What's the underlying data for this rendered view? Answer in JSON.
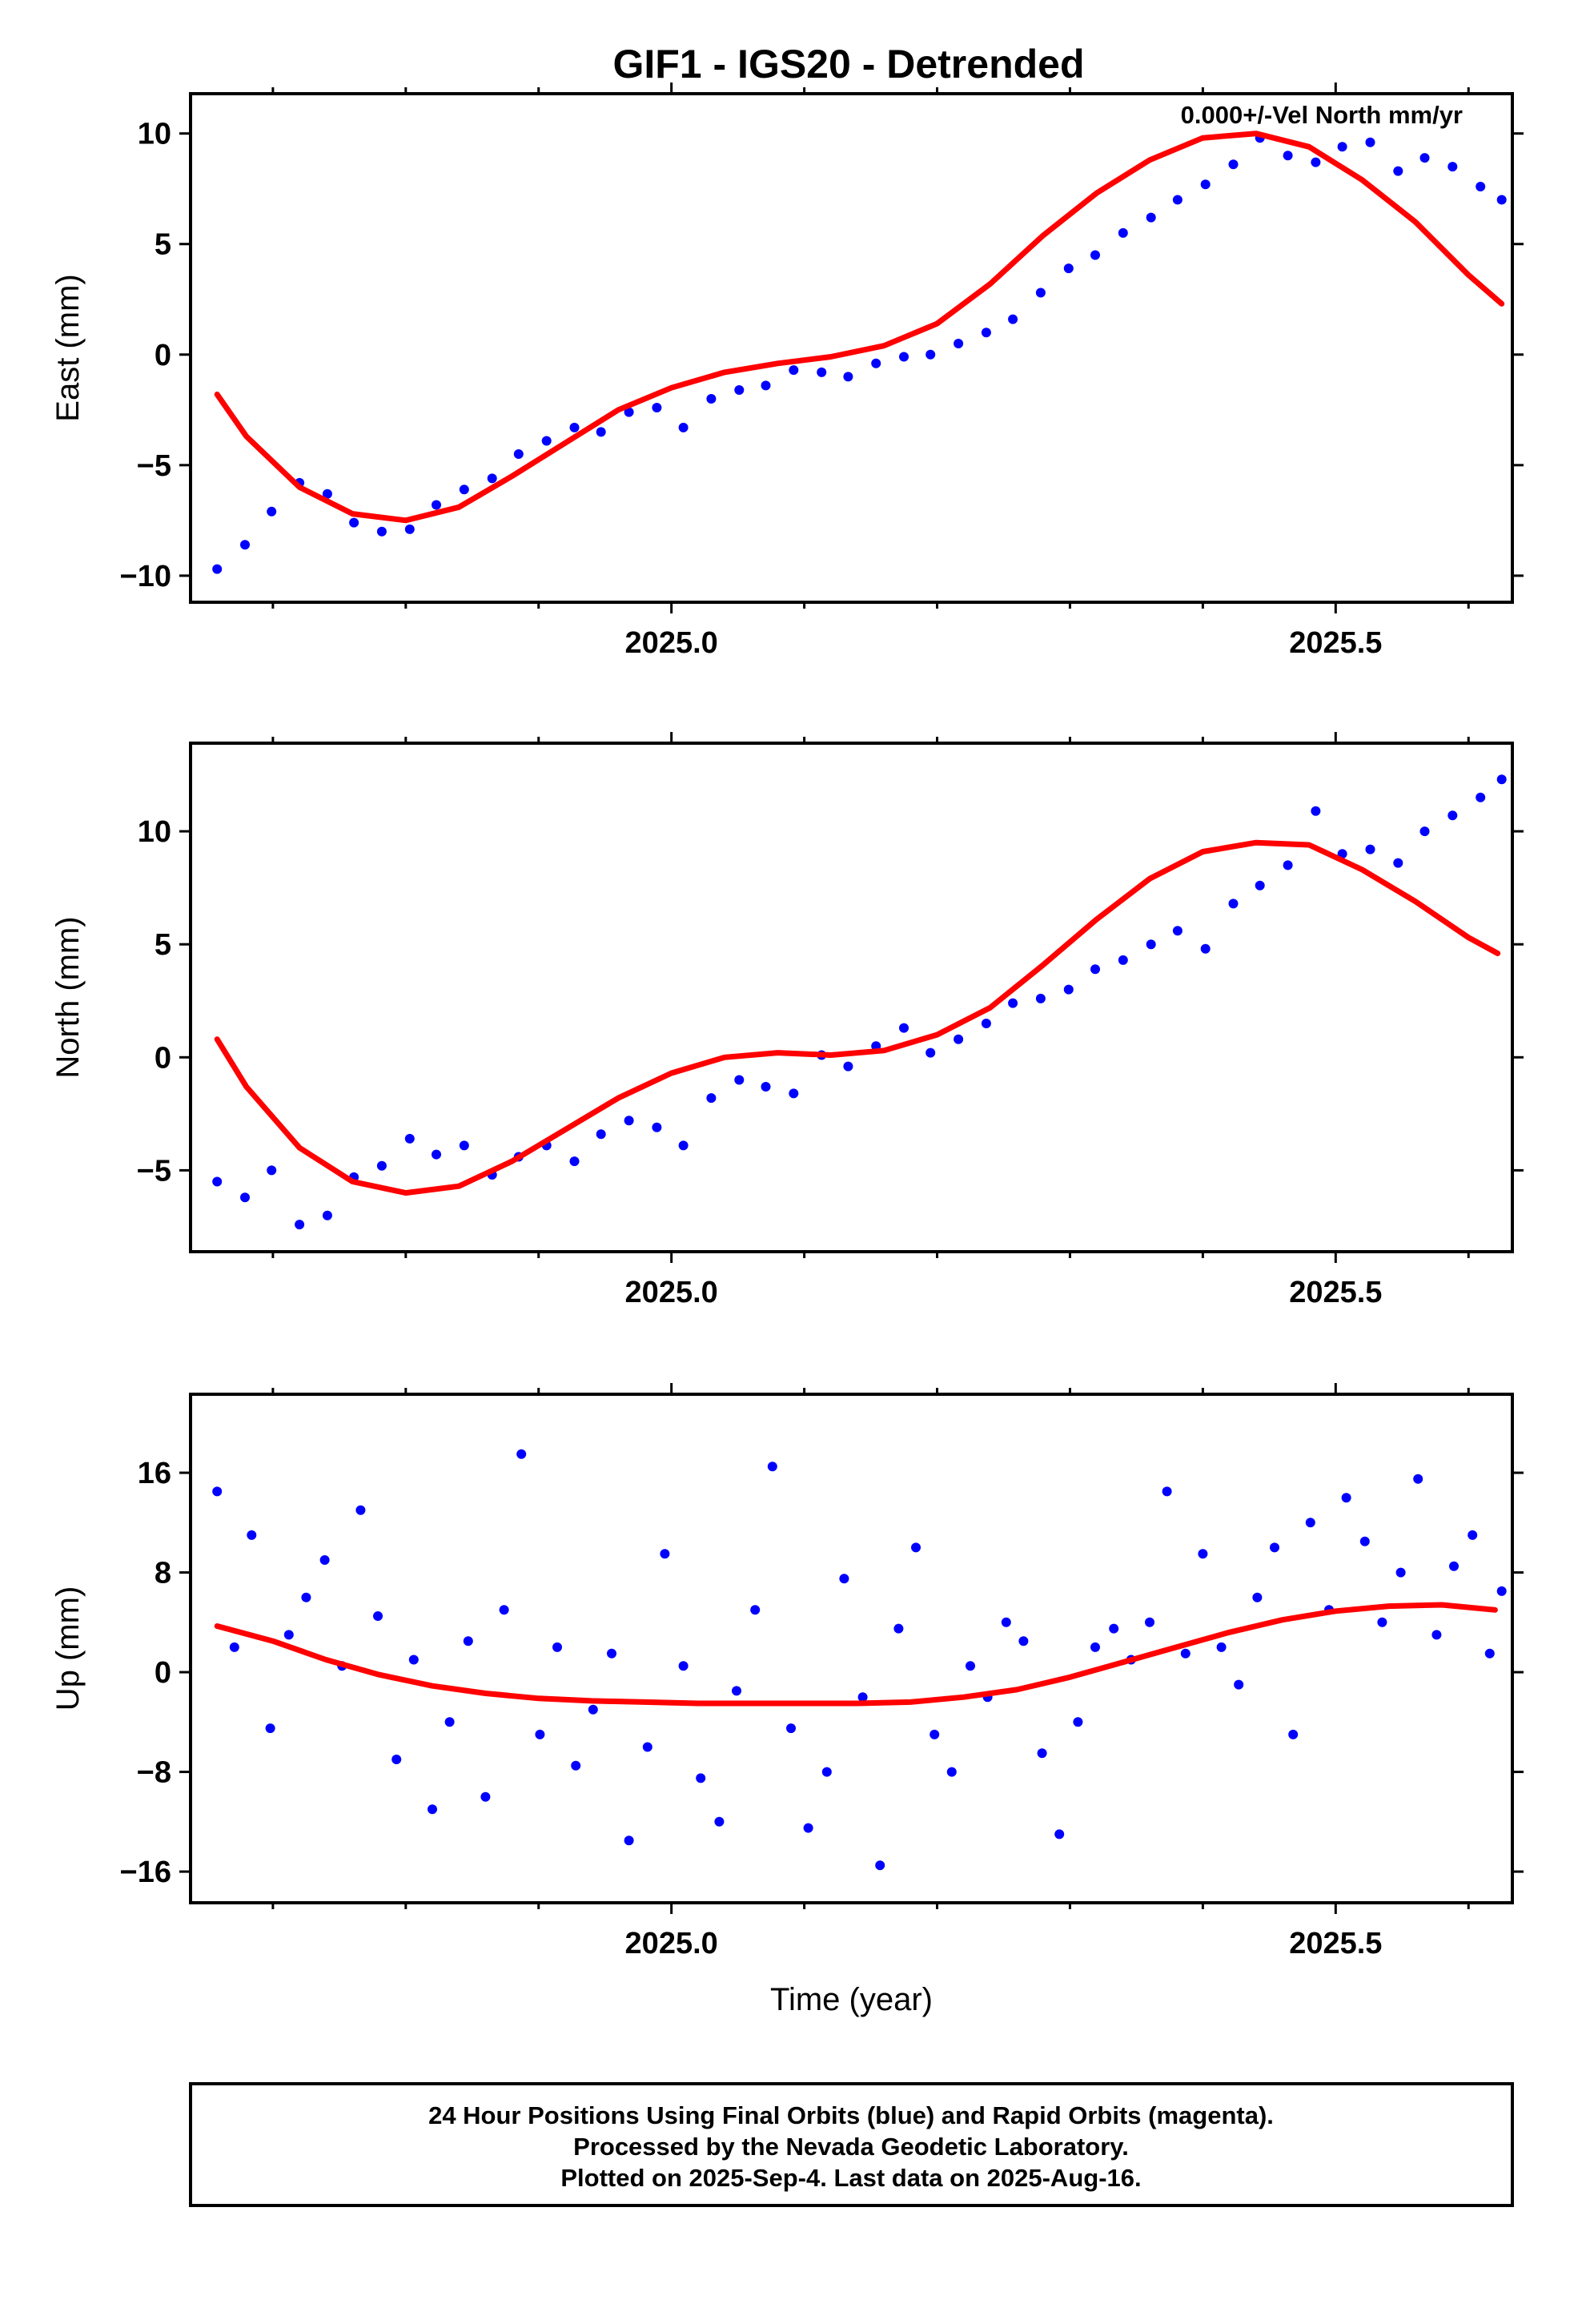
{
  "figure_title": "GIF1 - IGS20 - Detrended",
  "colors": {
    "final_orbits": "#0000ff",
    "fit": "#ff0000",
    "frame": "#000000"
  },
  "footer": {
    "lines": [
      "24 Hour Positions Using Final Orbits (blue) and Rapid Orbits (magenta).",
      "Processed by the Nevada Geodetic Laboratory.",
      "Plotted on 2025-Sep-4. Last data on 2025-Aug-16."
    ]
  },
  "chart_data": [
    {
      "type": "scatter",
      "id": "east",
      "title": "",
      "annotation": "0.000+/-Vel North mm/yr",
      "xlabel": "",
      "ylabel": "East (mm)",
      "xlim": [
        2024.638,
        2025.633
      ],
      "ylim": [
        -11.2,
        11.8
      ],
      "xticks": [
        2025.0,
        2025.5
      ],
      "xticks_labels": [
        "2025.0",
        "2025.5"
      ],
      "xticks_minor": [
        2024.7,
        2024.8,
        2024.9,
        2025.1,
        2025.2,
        2025.3,
        2025.4,
        2025.6
      ],
      "yticks": [
        -10,
        -5,
        0,
        5,
        10
      ],
      "yticks_labels": [
        "−10",
        "−5",
        "0",
        "5",
        "10"
      ],
      "grid": false,
      "series": [
        {
          "style": "points",
          "color": "#0000ff",
          "x": [
            2024.658,
            2024.679,
            2024.699,
            2024.72,
            2024.741,
            2024.761,
            2024.782,
            2024.803,
            2024.823,
            2024.844,
            2024.865,
            2024.885,
            2024.906,
            2024.927,
            2024.947,
            2024.968,
            2024.989,
            2025.009,
            2025.03,
            2025.051,
            2025.071,
            2025.092,
            2025.113,
            2025.133,
            2025.154,
            2025.175,
            2025.195,
            2025.216,
            2025.237,
            2025.257,
            2025.278,
            2025.299,
            2025.319,
            2025.34,
            2025.361,
            2025.381,
            2025.402,
            2025.423,
            2025.443,
            2025.464,
            2025.485,
            2025.505,
            2025.526,
            2025.547,
            2025.567,
            2025.588,
            2025.609,
            2025.625
          ],
          "y": [
            -9.7,
            -8.6,
            -7.1,
            -5.8,
            -6.3,
            -7.6,
            -8.0,
            -7.9,
            -6.8,
            -6.1,
            -5.6,
            -4.5,
            -3.9,
            -3.3,
            -3.5,
            -2.6,
            -2.4,
            -3.3,
            -2.0,
            -1.6,
            -1.4,
            -0.7,
            -0.8,
            -1.0,
            -0.4,
            -0.1,
            0.0,
            0.5,
            1.0,
            1.6,
            2.8,
            3.9,
            4.5,
            5.5,
            6.2,
            7.0,
            7.7,
            8.6,
            9.8,
            9.0,
            8.7,
            9.4,
            9.6,
            8.3,
            8.9,
            8.5,
            7.6,
            7.0
          ]
        },
        {
          "style": "line",
          "color": "#ff0000",
          "x": [
            2024.658,
            2024.68,
            2024.72,
            2024.76,
            2024.8,
            2024.84,
            2024.88,
            2024.92,
            2024.96,
            2025.0,
            2025.04,
            2025.08,
            2025.12,
            2025.16,
            2025.2,
            2025.24,
            2025.28,
            2025.32,
            2025.36,
            2025.4,
            2025.44,
            2025.48,
            2025.52,
            2025.56,
            2025.6,
            2025.625
          ],
          "y": [
            -1.8,
            -3.7,
            -6.0,
            -7.2,
            -7.5,
            -6.9,
            -5.5,
            -4.0,
            -2.5,
            -1.5,
            -0.8,
            -0.4,
            -0.1,
            0.4,
            1.4,
            3.2,
            5.4,
            7.3,
            8.8,
            9.8,
            10.0,
            9.4,
            7.9,
            6.0,
            3.6,
            2.3
          ]
        }
      ]
    },
    {
      "type": "scatter",
      "id": "north",
      "title": "",
      "xlabel": "",
      "ylabel": "North (mm)",
      "xlim": [
        2024.638,
        2025.633
      ],
      "ylim": [
        -8.6,
        13.9
      ],
      "xticks": [
        2025.0,
        2025.5
      ],
      "xticks_labels": [
        "2025.0",
        "2025.5"
      ],
      "xticks_minor": [
        2024.7,
        2024.8,
        2024.9,
        2025.1,
        2025.2,
        2025.3,
        2025.4,
        2025.6
      ],
      "yticks": [
        -5,
        0,
        5,
        10
      ],
      "yticks_labels": [
        "−5",
        "0",
        "5",
        "10"
      ],
      "grid": false,
      "series": [
        {
          "style": "points",
          "color": "#0000ff",
          "x": [
            2024.658,
            2024.679,
            2024.699,
            2024.72,
            2024.741,
            2024.761,
            2024.782,
            2024.803,
            2024.823,
            2024.844,
            2024.865,
            2024.885,
            2024.906,
            2024.927,
            2024.947,
            2024.968,
            2024.989,
            2025.009,
            2025.03,
            2025.051,
            2025.071,
            2025.092,
            2025.113,
            2025.133,
            2025.154,
            2025.175,
            2025.195,
            2025.216,
            2025.237,
            2025.257,
            2025.278,
            2025.299,
            2025.319,
            2025.34,
            2025.361,
            2025.381,
            2025.402,
            2025.423,
            2025.443,
            2025.464,
            2025.485,
            2025.505,
            2025.526,
            2025.547,
            2025.567,
            2025.588,
            2025.609,
            2025.625
          ],
          "y": [
            -5.5,
            -6.2,
            -5.0,
            -7.4,
            -7.0,
            -5.3,
            -4.8,
            -3.6,
            -4.3,
            -3.9,
            -5.2,
            -4.4,
            -3.9,
            -4.6,
            -3.4,
            -2.8,
            -3.1,
            -3.9,
            -1.8,
            -1.0,
            -1.3,
            -1.6,
            0.1,
            -0.4,
            0.5,
            1.3,
            0.2,
            0.8,
            1.5,
            2.4,
            2.6,
            3.0,
            3.9,
            4.3,
            5.0,
            5.6,
            4.8,
            6.8,
            7.6,
            8.5,
            10.9,
            9.0,
            9.2,
            8.6,
            10.0,
            10.7,
            11.5,
            12.3
          ]
        },
        {
          "style": "line",
          "color": "#ff0000",
          "x": [
            2024.658,
            2024.68,
            2024.72,
            2024.76,
            2024.8,
            2024.84,
            2024.88,
            2024.92,
            2024.96,
            2025.0,
            2025.04,
            2025.08,
            2025.12,
            2025.16,
            2025.2,
            2025.24,
            2025.28,
            2025.32,
            2025.36,
            2025.4,
            2025.44,
            2025.48,
            2025.52,
            2025.56,
            2025.6,
            2025.622
          ],
          "y": [
            0.8,
            -1.3,
            -4.0,
            -5.5,
            -6.0,
            -5.7,
            -4.6,
            -3.2,
            -1.8,
            -0.7,
            0.0,
            0.2,
            0.1,
            0.3,
            1.0,
            2.2,
            4.1,
            6.1,
            7.9,
            9.1,
            9.5,
            9.4,
            8.3,
            6.9,
            5.3,
            4.6
          ]
        }
      ]
    },
    {
      "type": "scatter",
      "id": "up",
      "title": "",
      "xlabel": "Time (year)",
      "ylabel": "Up (mm)",
      "xlim": [
        2024.638,
        2025.633
      ],
      "ylim": [
        -18.5,
        22.3
      ],
      "xticks": [
        2025.0,
        2025.5
      ],
      "xticks_labels": [
        "2025.0",
        "2025.5"
      ],
      "xticks_minor": [
        2024.7,
        2024.8,
        2024.9,
        2025.1,
        2025.2,
        2025.3,
        2025.4,
        2025.6
      ],
      "yticks": [
        -16,
        -8,
        0,
        8,
        16
      ],
      "yticks_labels": [
        "−16",
        "−8",
        "0",
        "8",
        "16"
      ],
      "grid": false,
      "series": [
        {
          "style": "points",
          "color": "#0000ff",
          "x": [
            2024.658,
            2024.671,
            2024.684,
            2024.698,
            2024.712,
            2024.725,
            2024.739,
            2024.752,
            2024.766,
            2024.779,
            2024.793,
            2024.806,
            2024.82,
            2024.833,
            2024.847,
            2024.86,
            2024.874,
            2024.887,
            2024.901,
            2024.914,
            2024.928,
            2024.941,
            2024.955,
            2024.968,
            2024.982,
            2024.995,
            2025.009,
            2025.022,
            2025.036,
            2025.049,
            2025.063,
            2025.076,
            2025.09,
            2025.103,
            2025.117,
            2025.13,
            2025.144,
            2025.157,
            2025.171,
            2025.184,
            2025.198,
            2025.211,
            2025.225,
            2025.238,
            2025.252,
            2025.265,
            2025.279,
            2025.292,
            2025.306,
            2025.319,
            2025.333,
            2025.346,
            2025.36,
            2025.373,
            2025.387,
            2025.4,
            2025.414,
            2025.427,
            2025.441,
            2025.454,
            2025.468,
            2025.481,
            2025.495,
            2025.508,
            2025.522,
            2025.535,
            2025.549,
            2025.562,
            2025.576,
            2025.589,
            2025.603,
            2025.616,
            2025.625
          ],
          "y": [
            14.5,
            2.0,
            11.0,
            -4.5,
            3.0,
            6.0,
            9.0,
            0.5,
            13.0,
            4.5,
            -7.0,
            1.0,
            -11.0,
            -4.0,
            2.5,
            -10.0,
            5.0,
            17.5,
            -5.0,
            2.0,
            -7.5,
            -3.0,
            1.5,
            -13.5,
            -6.0,
            9.5,
            0.5,
            -8.5,
            -12.0,
            -1.5,
            5.0,
            16.5,
            -4.5,
            -12.5,
            -8.0,
            7.5,
            -2.0,
            -15.5,
            3.5,
            10.0,
            -5.0,
            -8.0,
            0.5,
            -2.0,
            4.0,
            2.5,
            -6.5,
            -13.0,
            -4.0,
            2.0,
            3.5,
            1.0,
            4.0,
            14.5,
            1.5,
            9.5,
            2.0,
            -1.0,
            6.0,
            10.0,
            -5.0,
            12.0,
            5.0,
            14.0,
            10.5,
            4.0,
            8.0,
            15.5,
            3.0,
            8.5,
            11.0,
            1.5,
            6.5
          ]
        },
        {
          "style": "line",
          "color": "#ff0000",
          "x": [
            2024.658,
            2024.7,
            2024.74,
            2024.78,
            2024.82,
            2024.86,
            2024.9,
            2024.94,
            2024.98,
            2025.02,
            2025.06,
            2025.1,
            2025.14,
            2025.18,
            2025.22,
            2025.26,
            2025.3,
            2025.34,
            2025.38,
            2025.42,
            2025.46,
            2025.5,
            2025.54,
            2025.58,
            2025.62
          ],
          "y": [
            3.7,
            2.5,
            1.0,
            -0.2,
            -1.1,
            -1.7,
            -2.1,
            -2.3,
            -2.4,
            -2.5,
            -2.5,
            -2.5,
            -2.5,
            -2.4,
            -2.0,
            -1.4,
            -0.4,
            0.8,
            2.0,
            3.2,
            4.2,
            4.9,
            5.3,
            5.4,
            5.0
          ]
        }
      ]
    }
  ]
}
